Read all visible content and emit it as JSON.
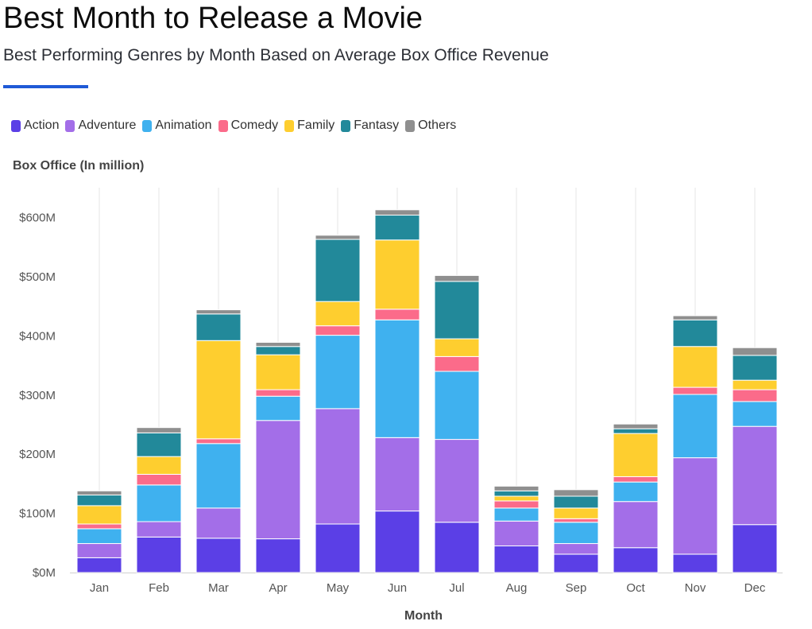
{
  "header": {
    "title": "Best Month to Release a Movie",
    "subtitle": "Best Performing Genres by Month Based on Average Box Office Revenue"
  },
  "chart_data": {
    "type": "bar",
    "stacked": true,
    "ylabel": "Box Office (In million)",
    "xlabel": "Month",
    "ylim": [
      0,
      640
    ],
    "yticks": [
      0,
      100,
      200,
      300,
      400,
      500,
      600
    ],
    "ytick_labels": [
      "$0M",
      "$100M",
      "$200M",
      "$300M",
      "$400M",
      "$500M",
      "$600M"
    ],
    "grid": "vertical",
    "legend_position": "top-left",
    "categories": [
      "Jan",
      "Feb",
      "Mar",
      "Apr",
      "May",
      "Jun",
      "Jul",
      "Aug",
      "Sep",
      "Oct",
      "Nov",
      "Dec"
    ],
    "series": [
      {
        "name": "Action",
        "color": "#5b3fe6",
        "values": [
          25,
          60,
          58,
          57,
          82,
          104,
          85,
          45,
          31,
          42,
          31,
          81
        ]
      },
      {
        "name": "Adventure",
        "color": "#a36ee8",
        "values": [
          24,
          26,
          51,
          200,
          195,
          124,
          140,
          42,
          18,
          78,
          163,
          166
        ]
      },
      {
        "name": "Animation",
        "color": "#3fb1ef",
        "values": [
          25,
          62,
          109,
          41,
          124,
          199,
          115,
          22,
          36,
          33,
          107,
          42
        ]
      },
      {
        "name": "Comedy",
        "color": "#fb6b8a",
        "values": [
          8,
          18,
          8,
          11,
          16,
          18,
          25,
          12,
          6,
          9,
          12,
          20
        ]
      },
      {
        "name": "Family",
        "color": "#fece2f",
        "values": [
          31,
          30,
          166,
          59,
          41,
          117,
          30,
          8,
          18,
          73,
          69,
          16
        ]
      },
      {
        "name": "Fantasy",
        "color": "#22899a",
        "values": [
          18,
          40,
          45,
          14,
          105,
          42,
          97,
          9,
          20,
          8,
          45,
          42
        ]
      },
      {
        "name": "Others",
        "color": "#8f8f8f",
        "values": [
          7,
          9,
          7,
          7,
          7,
          9,
          10,
          8,
          11,
          8,
          7,
          13
        ]
      }
    ]
  }
}
